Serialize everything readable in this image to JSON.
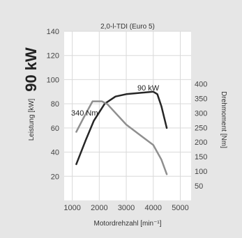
{
  "chart_data": {
    "type": "line",
    "title": "2,0-l-TDI (Euro 5)",
    "badge": "90 kW",
    "xlabel": "Motordrehzahl [min⁻¹]",
    "ylabel_left": "Leistung [kW]",
    "ylabel_right": "Drehmoment [Nm]",
    "x_ticks": [
      1000,
      2000,
      3000,
      4000,
      5000
    ],
    "y_left_ticks": [
      20,
      40,
      60,
      80,
      100,
      120,
      140
    ],
    "y_right_ticks": [
      50,
      100,
      150,
      200,
      250,
      300,
      350,
      400
    ],
    "xlim": [
      700,
      5400
    ],
    "ylim_left": [
      0,
      140
    ],
    "ylim_right": [
      0,
      580
    ],
    "grid": true,
    "annotations": {
      "power_peak": "90 kW",
      "torque_peak": "340 Nm"
    },
    "colors": {
      "power": "#262626",
      "torque": "#8f8f8f",
      "plot_bg": "#ffffff",
      "frame_bg": "#e6e6e6"
    },
    "series": [
      {
        "axis": "left",
        "x": [
          1150,
          1500,
          1800,
          2200,
          2600,
          3000,
          3500,
          4000,
          4150,
          4300,
          4500
        ],
        "y": [
          30,
          50,
          66,
          80,
          86,
          88,
          89,
          90,
          88,
          78,
          60
        ]
      },
      {
        "axis": "right",
        "x": [
          1150,
          1400,
          1750,
          2100,
          2300,
          2600,
          3000,
          3500,
          4000,
          4300,
          4500
        ],
        "y": [
          235,
          280,
          340,
          340,
          330,
          300,
          260,
          225,
          190,
          140,
          90
        ]
      }
    ]
  }
}
